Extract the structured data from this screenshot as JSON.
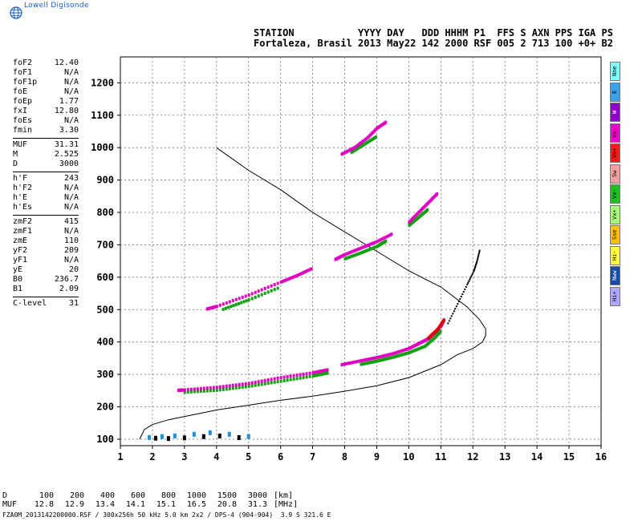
{
  "logo": {
    "text": "Lowell Digisonde",
    "icon": "globe-icon"
  },
  "header": {
    "line1": "STATION           YYYY DAY   DDD HHHM P1  FFS S AXN PPS IGA PS",
    "line2": "Fortaleza, Brasil 2013 May22 142 2000 RSF 005 2 713 100 +0+ B2"
  },
  "params": {
    "group1": [
      {
        "label": "foF2",
        "value": "12.40"
      },
      {
        "label": "foF1",
        "value": "N/A"
      },
      {
        "label": "foF1p",
        "value": "N/A"
      },
      {
        "label": "foE",
        "value": "N/A"
      },
      {
        "label": "foEp",
        "value": "1.77"
      },
      {
        "label": "fxI",
        "value": "12.80"
      },
      {
        "label": "foEs",
        "value": "N/A"
      },
      {
        "label": "fmin",
        "value": "3.30"
      }
    ],
    "group2": [
      {
        "label": "MUF",
        "value": "31.31"
      },
      {
        "label": "M",
        "value": "2.525"
      },
      {
        "label": "D",
        "value": "3000"
      }
    ],
    "group3": [
      {
        "label": "h'F",
        "value": "243"
      },
      {
        "label": "h'F2",
        "value": "N/A"
      },
      {
        "label": "h'E",
        "value": "N/A"
      },
      {
        "label": "h'Es",
        "value": "N/A"
      }
    ],
    "group4": [
      {
        "label": "zmF2",
        "value": "415"
      },
      {
        "label": "zmF1",
        "value": "N/A"
      },
      {
        "label": "zmE",
        "value": "110"
      },
      {
        "label": "yF2",
        "value": "209"
      },
      {
        "label": "yF1",
        "value": "N/A"
      },
      {
        "label": "yE",
        "value": "20"
      },
      {
        "label": "B0",
        "value": "236.7"
      },
      {
        "label": "B1",
        "value": "2.09"
      }
    ],
    "group5": [
      {
        "label": "C-level",
        "value": "31"
      }
    ]
  },
  "tabs": [
    {
      "label": "Nne",
      "color": "#7fffff"
    },
    {
      "label": "E",
      "color": "#3aa0e8"
    },
    {
      "label": "W",
      "color": "#8e00c8"
    },
    {
      "label": "Vo-",
      "color": "#f000c8"
    },
    {
      "label": "Vo+",
      "color": "#ff1a1a"
    },
    {
      "label": "Sw",
      "color": "#f0a0a0"
    },
    {
      "label": "Vx-",
      "color": "#20c020"
    },
    {
      "label": "Vx+",
      "color": "#a8ff7a"
    },
    {
      "label": "Sse",
      "color": "#ffc000"
    },
    {
      "label": "Hi-",
      "color": "#ffff40"
    },
    {
      "label": "Nww",
      "color": "#1a4aa8"
    },
    {
      "label": "Hi+",
      "color": "#b0a8ff"
    }
  ],
  "muf_table": {
    "d_label": "D",
    "d_values": [
      "100",
      "200",
      "400",
      "600",
      "800",
      "1000",
      "1500",
      "3000"
    ],
    "d_unit": "[km]",
    "muf_label": "MUF",
    "muf_values": [
      "12.8",
      "12.9",
      "13.4",
      "14.1",
      "15.1",
      "16.5",
      "20.8",
      "31.3"
    ],
    "muf_unit": "[MHz]"
  },
  "footer": "FZA0M_2013142200000.RSF / 300x256h 50 kHz 5.0 km 2x2 / DPS-4 (904-904)  3.9 S 321.6 E",
  "chart_data": {
    "type": "scatter",
    "xlim": [
      1,
      16
    ],
    "ylim": [
      80,
      1280
    ],
    "x_ticks": [
      "1",
      "2",
      "3",
      "4",
      "5",
      "6",
      "7",
      "8",
      "9",
      "10",
      "11",
      "12",
      "13",
      "14",
      "15",
      "16"
    ],
    "y_ticks": [
      "100",
      "200",
      "300",
      "400",
      "500",
      "600",
      "700",
      "800",
      "900",
      "1000",
      "1100",
      "1200"
    ],
    "grid": true,
    "colors": {
      "o_minus": "#e000c0",
      "o_plus": "#e00000",
      "x_minus": "#10a010",
      "x_plus": "#50d050",
      "e": "#1e8fd8",
      "noise": "#000000"
    },
    "profile": {
      "label": "electron density profile",
      "x": [
        1.6,
        1.75,
        2.0,
        2.5,
        3.0,
        3.5,
        4.0,
        5.0,
        6.0,
        7.0,
        8.0,
        9.0,
        10.0,
        11.0,
        11.5,
        12.0,
        12.3,
        12.4,
        12.4,
        12.2,
        11.8,
        11.0,
        10.0,
        9.0,
        8.0,
        7.0,
        6.0,
        5.0,
        4.0
      ],
      "y": [
        100,
        130,
        145,
        160,
        170,
        180,
        190,
        205,
        220,
        233,
        248,
        265,
        290,
        330,
        360,
        380,
        400,
        420,
        440,
        470,
        510,
        570,
        620,
        680,
        740,
        800,
        870,
        930,
        1000
      ]
    },
    "o_traces": [
      {
        "name": "F1",
        "x": [
          2.8,
          3.0,
          4.0,
          5.0,
          6.0,
          7.0,
          7.5
        ],
        "y": [
          251,
          252,
          260,
          272,
          290,
          305,
          315
        ]
      },
      {
        "name": "F2",
        "x": [
          7.9,
          8.5,
          9.0,
          9.5,
          10.0,
          10.3,
          10.6,
          10.8,
          11.0,
          11.1
        ],
        "y": [
          330,
          342,
          352,
          364,
          380,
          395,
          410,
          428,
          450,
          470
        ]
      },
      {
        "name": "2F-low",
        "x": [
          3.7,
          4.0,
          5.0,
          6.0,
          6.5,
          7.0
        ],
        "y": [
          502,
          510,
          545,
          585,
          605,
          628
        ]
      },
      {
        "name": "2F-high",
        "x": [
          7.7,
          8.0,
          8.5,
          9.0,
          9.5
        ],
        "y": [
          655,
          670,
          690,
          710,
          735
        ]
      },
      {
        "name": "3F-low",
        "x": [
          10.0,
          10.3,
          10.6,
          10.9
        ],
        "y": [
          770,
          800,
          830,
          860
        ]
      },
      {
        "name": "3F-high",
        "x": [
          7.9,
          8.3,
          8.7,
          9.0,
          9.3
        ],
        "y": [
          980,
          1000,
          1030,
          1060,
          1080
        ]
      }
    ],
    "x_traces": [
      {
        "name": "F1x",
        "x": [
          3.0,
          4.0,
          5.0,
          6.0,
          7.0,
          7.5
        ],
        "y": [
          250,
          256,
          268,
          284,
          300,
          310
        ]
      },
      {
        "name": "F2x",
        "x": [
          8.5,
          9.0,
          9.5,
          10.0,
          10.5,
          10.8,
          11.0
        ],
        "y": [
          336,
          346,
          358,
          372,
          392,
          418,
          440
        ]
      },
      {
        "name": "2Fx-low",
        "x": [
          4.2,
          5.0,
          6.0
        ],
        "y": [
          506,
          535,
          575
        ]
      },
      {
        "name": "2Fx-high",
        "x": [
          8.0,
          8.5,
          9.0,
          9.3
        ],
        "y": [
          662,
          680,
          700,
          718
        ]
      },
      {
        "name": "3Fx-low",
        "x": [
          10.0,
          10.3,
          10.6
        ],
        "y": [
          765,
          790,
          815
        ]
      },
      {
        "name": "3Fx-high",
        "x": [
          8.2,
          8.6,
          9.0
        ],
        "y": [
          990,
          1015,
          1040
        ]
      }
    ],
    "noise_trace": {
      "x": [
        11.2,
        11.5,
        11.8,
        12.0,
        12.1,
        12.2
      ],
      "y": [
        460,
        520,
        580,
        620,
        650,
        690
      ]
    },
    "e_layer": {
      "x": [
        1.9,
        2.1,
        2.3,
        2.5,
        2.7,
        3.0,
        3.3,
        3.6,
        3.8,
        4.1,
        4.4,
        4.7,
        5.0
      ],
      "y": [
        105,
        103,
        108,
        102,
        110,
        104,
        115,
        108,
        120,
        110,
        115,
        105,
        108
      ]
    }
  }
}
